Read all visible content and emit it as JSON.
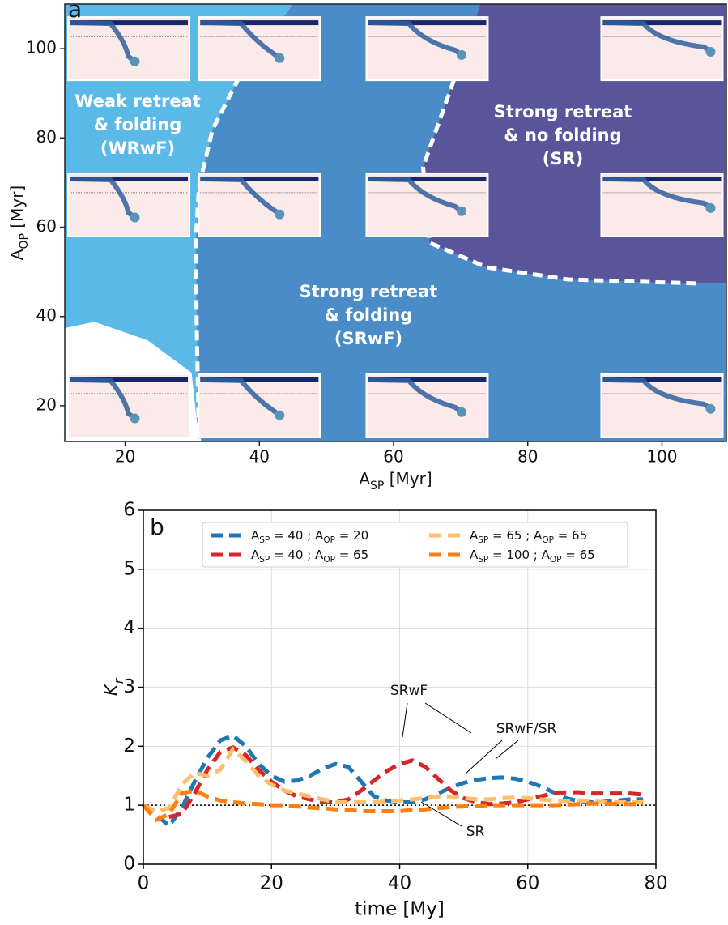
{
  "chart_data": [
    {
      "type": "regime",
      "panel": "a",
      "xlabel": [
        "A",
        "SP",
        " [Myr]"
      ],
      "ylabel": [
        "A",
        "OP",
        " [Myr]"
      ],
      "xlim": [
        11,
        109.6
      ],
      "ylim": [
        12,
        110
      ],
      "xticks": [
        20,
        40,
        60,
        80,
        100
      ],
      "yticks": [
        20,
        40,
        60,
        80,
        100
      ],
      "regions": [
        {
          "label": [
            "Weak retreat",
            "& folding",
            "(WRwF)"
          ],
          "color": "#5bb9e7",
          "x": [
            11,
            45,
            37,
            33,
            31,
            30.5,
            30.7,
            31,
            11
          ],
          "y": [
            110,
            110,
            93.6,
            81.8,
            69,
            56.5,
            34.7,
            12,
            12
          ]
        },
        {
          "label": [
            "Strong retreat",
            "& folding",
            "(SRwF)"
          ],
          "color": "#4a8cc8",
          "x": [
            45,
            37,
            33,
            31,
            30.5,
            30.7,
            31,
            109.6,
            109.6,
            73
          ],
          "y": [
            110,
            93.6,
            81.8,
            69,
            56.5,
            34.7,
            12,
            12,
            110,
            110
          ]
        },
        {
          "label": [
            "Strong retreat",
            "& no folding",
            "(SR)"
          ],
          "color": "#58559a",
          "x": [
            73,
            69,
            64.4,
            65.4,
            73.9,
            86,
            105.2,
            109.6,
            109.6
          ],
          "y": [
            110,
            93,
            73.5,
            56.5,
            51,
            48.3,
            47.4,
            47.4,
            110
          ]
        },
        {
          "color": "#ffffff",
          "x": [
            11,
            15.4,
            23.3,
            29.9,
            31,
            11
          ],
          "y": [
            37.4,
            38.8,
            34.7,
            27.4,
            12,
            12
          ]
        }
      ],
      "boundaries": [
        {
          "x": [
            37,
            33,
            31,
            30.5,
            30.7,
            31
          ],
          "y": [
            93.6,
            81.8,
            69,
            56.5,
            34.7,
            12
          ]
        },
        {
          "x": [
            69,
            64.4,
            65.4,
            73.9,
            86,
            105.2
          ],
          "y": [
            93,
            73.5,
            56.5,
            51,
            48.3,
            47.4
          ]
        }
      ],
      "simulations": {
        "x": [
          20,
          40,
          65,
          100,
          20,
          40,
          65,
          100,
          20,
          40,
          65,
          100
        ],
        "y": [
          100,
          100,
          100,
          100,
          65,
          65,
          65,
          65,
          20,
          20,
          20,
          20
        ]
      }
    },
    {
      "type": "line",
      "panel": "b",
      "xlabel": "time [My]",
      "ylabel": [
        "K",
        "r"
      ],
      "xlim": [
        0,
        80
      ],
      "ylim": [
        0,
        6
      ],
      "xticks": [
        0,
        20,
        40,
        60,
        80
      ],
      "yticks": [
        0,
        1,
        2,
        3,
        4,
        5,
        6
      ],
      "grid": true,
      "hline": 1,
      "x": [
        0,
        2,
        4,
        6,
        8,
        10,
        12,
        14,
        16,
        18,
        20,
        22,
        24,
        26,
        28,
        30,
        32,
        34,
        36,
        38,
        40,
        42,
        44,
        46,
        48,
        50,
        52,
        54,
        56,
        58,
        60,
        62,
        64,
        66,
        68,
        70,
        72,
        74,
        76,
        78
      ],
      "series": [
        {
          "name": [
            "A",
            "SP",
            " =  40 ; A",
            "OP",
            " =  20"
          ],
          "color": "#1f77b4",
          "values": [
            1.0,
            0.85,
            0.65,
            0.95,
            1.4,
            1.8,
            2.1,
            2.18,
            2.0,
            1.7,
            1.5,
            1.4,
            1.42,
            1.5,
            1.62,
            1.7,
            1.65,
            1.4,
            1.15,
            1.08,
            1.05,
            1.05,
            1.1,
            1.2,
            1.3,
            1.38,
            1.43,
            1.46,
            1.47,
            1.45,
            1.4,
            1.32,
            1.22,
            1.12,
            1.07,
            1.05,
            1.06,
            1.08,
            1.1,
            1.1
          ]
        },
        {
          "name": [
            "A",
            "SP",
            " =  40 ; A",
            "OP",
            " =  65"
          ],
          "color": "#d62728",
          "values": [
            null,
            null,
            0.8,
            0.85,
            1.2,
            1.6,
            1.9,
            1.98,
            1.85,
            1.6,
            1.4,
            1.25,
            1.15,
            1.1,
            1.05,
            1.05,
            1.1,
            1.25,
            1.42,
            1.58,
            1.7,
            1.76,
            1.65,
            1.45,
            1.25,
            1.12,
            1.05,
            1.02,
            1.03,
            1.05,
            1.1,
            1.15,
            1.2,
            1.22,
            1.22,
            1.2,
            1.2,
            1.2,
            1.2,
            1.18
          ]
        },
        {
          "name": [
            "A",
            "SP",
            " =  65 ; A",
            "OP",
            " =  65"
          ],
          "color": "#fdbf6f",
          "values": [
            1.0,
            0.9,
            0.95,
            1.35,
            1.55,
            1.5,
            1.6,
            1.95,
            1.75,
            1.5,
            1.35,
            1.25,
            1.2,
            1.15,
            1.1,
            1.05,
            1.05,
            1.05,
            1.05,
            1.07,
            1.08,
            1.1,
            1.12,
            1.15,
            1.15,
            1.12,
            1.1,
            1.1,
            1.12,
            1.13,
            1.12,
            1.1,
            1.08,
            1.07,
            1.08,
            1.07,
            1.05,
            1.05,
            1.05,
            1.05
          ]
        },
        {
          "name": [
            "A",
            "SP",
            " = 100 ; A",
            "OP",
            " =  65"
          ],
          "color": "#ff7f0e",
          "values": [
            1.0,
            0.75,
            0.85,
            1.2,
            1.25,
            1.15,
            1.08,
            1.05,
            1.03,
            1.02,
            1.0,
            1.0,
            0.98,
            0.96,
            0.95,
            0.93,
            0.92,
            0.9,
            0.9,
            0.9,
            0.9,
            0.92,
            0.93,
            0.95,
            0.97,
            0.98,
            0.99,
            1.0,
            1.0,
            1.0,
            1.0,
            1.0,
            1.0,
            1.01,
            1.02,
            1.03,
            1.03,
            1.02,
            1.02,
            1.02
          ]
        }
      ],
      "annotations": [
        "SRwF",
        "SRwF/SR",
        "SR"
      ]
    }
  ]
}
